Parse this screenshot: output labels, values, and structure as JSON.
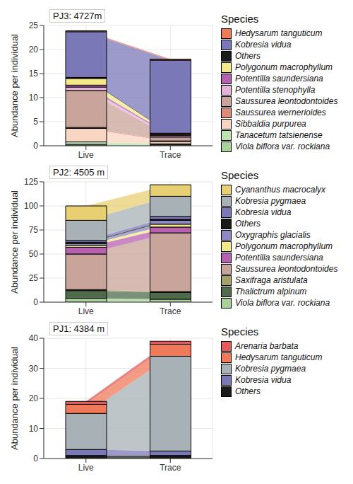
{
  "chart_data": [
    {
      "type": "alluvial",
      "title": "PJ3: 4727m",
      "ylabel": "Abundance per individual",
      "legend_title": "Species",
      "legend": "right",
      "stacked": true,
      "grid": true,
      "categories": [
        "Live",
        "Trace"
      ],
      "ylim": [
        0,
        25
      ],
      "yticks": [
        0,
        5,
        10,
        15,
        20,
        25
      ],
      "series": [
        {
          "name": "Hedysarum tanguticum",
          "color": "#f0795a",
          "values": [
            0.2,
            0.2
          ]
        },
        {
          "name": "Kobresia vidua",
          "color": "#7b78b8",
          "values": [
            9.5,
            15.2
          ]
        },
        {
          "name": "Others",
          "color": "#1a1a1a",
          "values": [
            0.2,
            0.1
          ]
        },
        {
          "name": "Polygonum macrophyllum",
          "color": "#f3e98a",
          "values": [
            1.4,
            0.2
          ]
        },
        {
          "name": "Potentilla saundersiana",
          "color": "#b861b0",
          "values": [
            0.4,
            0.2
          ]
        },
        {
          "name": "Potentilla stenophylla",
          "color": "#e5b3d8",
          "values": [
            0.7,
            0.3
          ]
        },
        {
          "name": "Saussurea leontodontoides",
          "color": "#c9a49a",
          "values": [
            7.7,
            0.8
          ]
        },
        {
          "name": "Saussurea wernerioides",
          "color": "#e08a7c",
          "values": [
            0.2,
            0.1
          ]
        },
        {
          "name": "Sibbaldia purpurea",
          "color": "#f9d6c2",
          "values": [
            2.8,
            0.5
          ]
        },
        {
          "name": "Tanacetum tatsienense",
          "color": "#bfe3b0",
          "values": [
            0.5,
            0.2
          ]
        },
        {
          "name": "Viola biflora var. rockiana",
          "color": "#a9d19a",
          "values": [
            0.3,
            0.2
          ]
        }
      ]
    },
    {
      "type": "alluvial",
      "title": "PJ2: 4505 m",
      "ylabel": "Abundance per individual",
      "legend_title": "Species",
      "legend": "right",
      "stacked": true,
      "grid": true,
      "categories": [
        "Live",
        "Trace"
      ],
      "ylim": [
        0,
        125
      ],
      "yticks": [
        0,
        25,
        50,
        75,
        100,
        125
      ],
      "series": [
        {
          "name": "Cyananthus macrocalyx",
          "color": "#e8cf72",
          "values": [
            15,
            12
          ]
        },
        {
          "name": "Kobresia pygmaea",
          "color": "#a8b2b6",
          "values": [
            21,
            21
          ]
        },
        {
          "name": "Kobresia vidua",
          "color": "#7b78b8",
          "values": [
            2,
            3
          ]
        },
        {
          "name": "Others",
          "color": "#1a1a1a",
          "values": [
            1,
            1
          ]
        },
        {
          "name": "Oxygraphis glacialis",
          "color": "#8e89c2",
          "values": [
            2,
            4
          ]
        },
        {
          "name": "Polygonum macrophyllum",
          "color": "#f3e98a",
          "values": [
            2,
            3
          ]
        },
        {
          "name": "Potentilla saundersiana",
          "color": "#b861b0",
          "values": [
            7,
            6
          ]
        },
        {
          "name": "Saussurea leontodontoides",
          "color": "#c9a49a",
          "values": [
            37,
            61
          ]
        },
        {
          "name": "Saxifraga aristulata",
          "color": "#a6a06a",
          "values": [
            1,
            1
          ]
        },
        {
          "name": "Thalictrum alpinum",
          "color": "#4f6b4c",
          "values": [
            8,
            7
          ]
        },
        {
          "name": "Viola biflora var. rockiana",
          "color": "#a9d19a",
          "values": [
            4,
            3
          ]
        }
      ]
    },
    {
      "type": "alluvial",
      "title": "PJ1: 4384 m",
      "ylabel": "Abundance per individual",
      "legend_title": "Species",
      "legend": "right",
      "stacked": true,
      "grid": true,
      "categories": [
        "Live",
        "Trace"
      ],
      "ylim": [
        0,
        40
      ],
      "yticks": [
        0,
        10,
        20,
        30,
        40
      ],
      "series": [
        {
          "name": "Arenaria barbata",
          "color": "#e35b5b",
          "values": [
            1,
            1
          ]
        },
        {
          "name": "Hedysarum tanguticum",
          "color": "#f0795a",
          "values": [
            3,
            4
          ]
        },
        {
          "name": "Kobresia pygmaea",
          "color": "#a8b2b6",
          "values": [
            12,
            31.5
          ]
        },
        {
          "name": "Kobresia vidua",
          "color": "#7b78b8",
          "values": [
            2,
            1.5
          ]
        },
        {
          "name": "Others",
          "color": "#1a1a1a",
          "values": [
            1,
            1
          ]
        }
      ]
    }
  ]
}
